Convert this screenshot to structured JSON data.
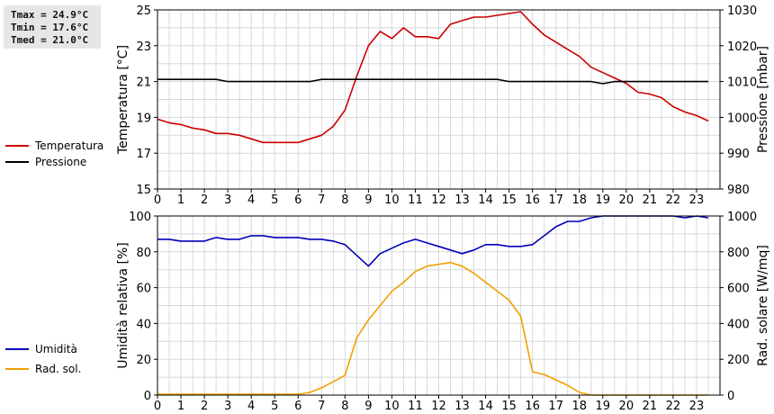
{
  "stats": {
    "tmax": "Tmax = 24.9°C",
    "tmin": "Tmin = 17.6°C",
    "tmed": "Tmed = 21.0°C"
  },
  "legend_top": [
    {
      "label": "Temperatura",
      "color": "#cc0000"
    },
    {
      "label": "Pressione",
      "color": "#000000"
    }
  ],
  "legend_bottom": [
    {
      "label": "Umidità",
      "color": "#0000bb"
    },
    {
      "label": "Rad. sol.",
      "color": "#f0a000"
    }
  ],
  "chart_data": [
    {
      "type": "line",
      "xlabel": "",
      "ylabel": "Temperatura [°C]",
      "y2label": "Pressione [mbar]",
      "xlim": [
        0,
        24
      ],
      "ylim": [
        15,
        25
      ],
      "y2lim": [
        980,
        1030
      ],
      "x_ticks": [
        "0",
        "1",
        "2",
        "3",
        "4",
        "5",
        "6",
        "7",
        "8",
        "9",
        "10",
        "11",
        "12",
        "13",
        "14",
        "15",
        "16",
        "17",
        "18",
        "19",
        "20",
        "21",
        "22",
        "23"
      ],
      "y_ticks": [
        "15",
        "17",
        "19",
        "21",
        "23",
        "25"
      ],
      "y2_ticks": [
        "980",
        "990",
        "1000",
        "1010",
        "1020",
        "1030"
      ],
      "grid": true,
      "series": [
        {
          "name": "Temperatura",
          "axis": "left",
          "color": "#cc0000",
          "x": [
            0,
            0.5,
            1,
            1.5,
            2,
            2.5,
            3,
            3.5,
            4,
            4.5,
            5,
            5.5,
            6,
            6.5,
            7,
            7.5,
            8,
            8.5,
            9,
            9.5,
            10,
            10.5,
            11,
            11.5,
            12,
            12.5,
            13,
            13.5,
            14,
            14.5,
            15,
            15.5,
            16,
            16.5,
            17,
            17.5,
            18,
            18.5,
            19,
            19.5,
            20,
            20.5,
            21,
            21.5,
            22,
            22.5,
            23,
            23.5
          ],
          "y": [
            18.9,
            18.7,
            18.6,
            18.4,
            18.3,
            18.1,
            18.1,
            18.0,
            17.8,
            17.6,
            17.6,
            17.6,
            17.6,
            17.8,
            18.0,
            18.5,
            19.4,
            21.3,
            23.0,
            23.8,
            23.4,
            24.0,
            23.5,
            23.5,
            23.4,
            24.2,
            24.4,
            24.6,
            24.6,
            24.7,
            24.8,
            24.9,
            24.2,
            23.6,
            23.2,
            22.8,
            22.4,
            21.8,
            21.5,
            21.2,
            20.9,
            20.4,
            20.3,
            20.1,
            19.6,
            19.3,
            19.1,
            18.8
          ]
        },
        {
          "name": "Pressione",
          "axis": "right",
          "color": "#000000",
          "x": [
            0,
            0.5,
            1,
            1.5,
            2,
            2.5,
            3,
            3.5,
            4,
            4.5,
            5,
            5.5,
            6,
            6.5,
            7,
            7.5,
            8,
            8.5,
            9,
            9.5,
            10,
            10.5,
            11,
            11.5,
            12,
            12.5,
            13,
            13.5,
            14,
            14.5,
            15,
            15.5,
            16,
            16.5,
            17,
            17.5,
            18,
            18.5,
            19,
            19.5,
            20,
            20.5,
            21,
            21.5,
            22,
            22.5,
            23,
            23.5
          ],
          "y": [
            1010.6,
            1010.6,
            1010.6,
            1010.6,
            1010.6,
            1010.6,
            1010.0,
            1010.0,
            1010.0,
            1010.0,
            1010.0,
            1010.0,
            1010.0,
            1010.0,
            1010.6,
            1010.6,
            1010.6,
            1010.6,
            1010.6,
            1010.6,
            1010.6,
            1010.6,
            1010.6,
            1010.6,
            1010.6,
            1010.6,
            1010.6,
            1010.6,
            1010.6,
            1010.6,
            1010.0,
            1010.0,
            1010.0,
            1010.0,
            1010.0,
            1010.0,
            1010.0,
            1010.0,
            1009.4,
            1010.0,
            1010.0,
            1010.0,
            1010.0,
            1010.0,
            1010.0,
            1010.0,
            1010.0,
            1010.0
          ]
        }
      ]
    },
    {
      "type": "line",
      "xlabel": "",
      "ylabel": "Umidità relativa [%]",
      "y2label": "Rad. solare [W/mq]",
      "xlim": [
        0,
        24
      ],
      "ylim": [
        0,
        100
      ],
      "y2lim": [
        0,
        1000
      ],
      "x_ticks": [
        "0",
        "1",
        "2",
        "3",
        "4",
        "5",
        "6",
        "7",
        "8",
        "9",
        "10",
        "11",
        "12",
        "13",
        "14",
        "15",
        "16",
        "17",
        "18",
        "19",
        "20",
        "21",
        "22",
        "23"
      ],
      "y_ticks": [
        "0",
        "20",
        "40",
        "60",
        "80",
        "100"
      ],
      "y2_ticks": [
        "0",
        "200",
        "400",
        "600",
        "800",
        "1000"
      ],
      "grid": true,
      "series": [
        {
          "name": "Umidità",
          "axis": "left",
          "color": "#0000bb",
          "x": [
            0,
            0.5,
            1,
            1.5,
            2,
            2.5,
            3,
            3.5,
            4,
            4.5,
            5,
            5.5,
            6,
            6.5,
            7,
            7.5,
            8,
            8.5,
            9,
            9.5,
            10,
            10.5,
            11,
            11.5,
            12,
            12.5,
            13,
            13.5,
            14,
            14.5,
            15,
            15.5,
            16,
            16.5,
            17,
            17.5,
            18,
            18.5,
            19,
            19.5,
            20,
            20.5,
            21,
            21.5,
            22,
            22.5,
            23,
            23.5
          ],
          "y": [
            87,
            87,
            86,
            86,
            86,
            88,
            87,
            87,
            89,
            89,
            88,
            88,
            88,
            87,
            87,
            86,
            84,
            78,
            72,
            79,
            82,
            85,
            87,
            85,
            83,
            81,
            79,
            81,
            84,
            84,
            83,
            83,
            84,
            89,
            94,
            97,
            97,
            99,
            100,
            100,
            100,
            100,
            100,
            100,
            100,
            99,
            100,
            99
          ]
        },
        {
          "name": "Rad. sol.",
          "axis": "right",
          "color": "#f0a000",
          "x": [
            0,
            0.5,
            1,
            1.5,
            2,
            2.5,
            3,
            3.5,
            4,
            4.5,
            5,
            5.5,
            6,
            6.5,
            7,
            7.5,
            8,
            8.5,
            9,
            9.5,
            10,
            10.5,
            11,
            11.5,
            12,
            12.5,
            13,
            13.5,
            14,
            14.5,
            15,
            15.5,
            16,
            16.5,
            17,
            17.5,
            18,
            18.5,
            19,
            19.5,
            20,
            20.5,
            21,
            21.5,
            22,
            22.5,
            23,
            23.5
          ],
          "y": [
            5,
            5,
            5,
            5,
            5,
            5,
            5,
            5,
            5,
            5,
            5,
            5,
            5,
            15,
            40,
            75,
            110,
            320,
            420,
            500,
            580,
            630,
            690,
            720,
            730,
            740,
            720,
            680,
            630,
            580,
            530,
            440,
            130,
            115,
            85,
            55,
            15,
            0,
            0,
            0,
            0,
            0,
            0,
            0,
            0,
            0,
            0,
            0
          ]
        }
      ]
    }
  ]
}
